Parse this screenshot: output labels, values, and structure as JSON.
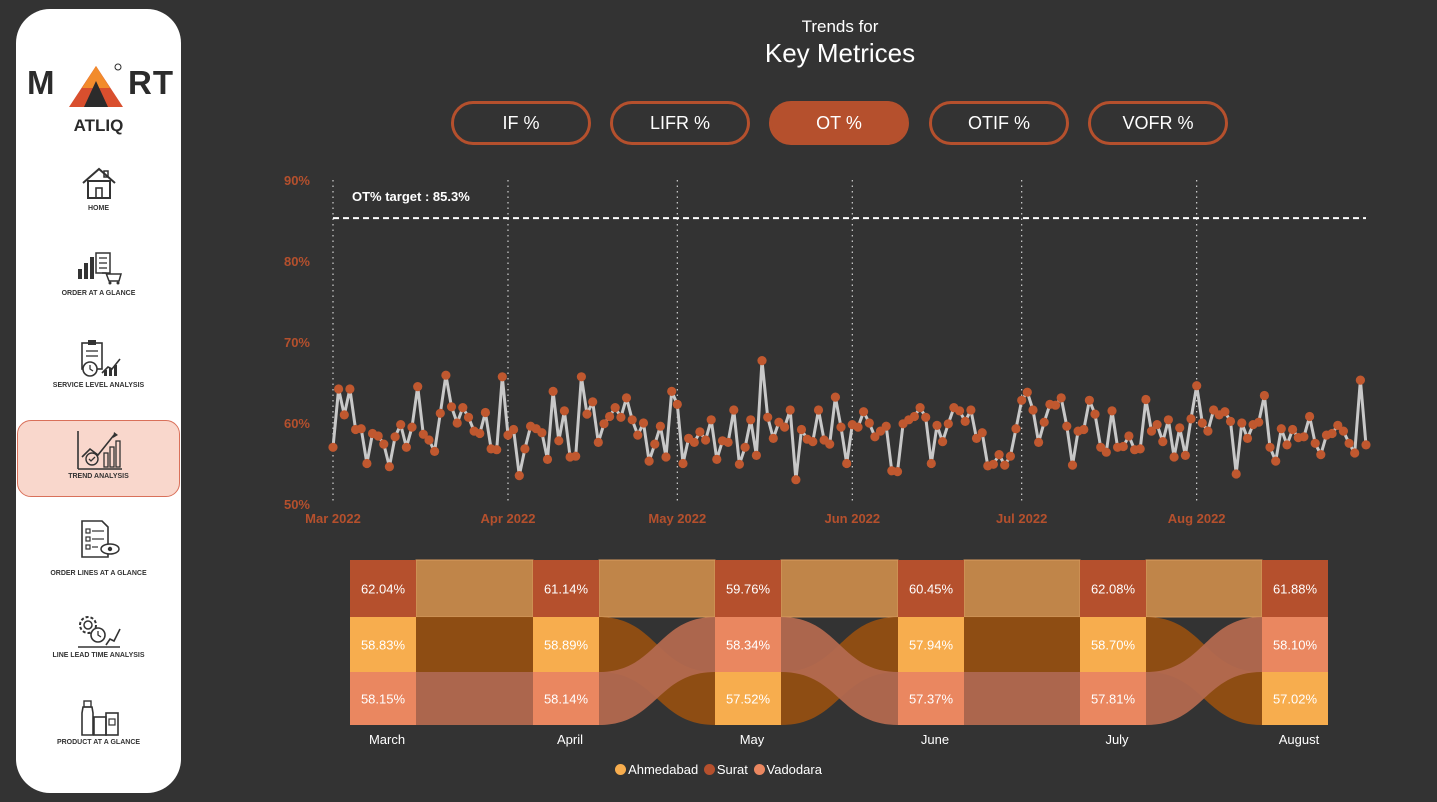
{
  "brand": {
    "logo_left": "M",
    "logo_right": "RT",
    "sub": "ATLIQ"
  },
  "nav": [
    {
      "label": "HOME",
      "icon": "home-icon"
    },
    {
      "label": "ORDER AT A GLANCE",
      "icon": "order-chart-icon"
    },
    {
      "label": "SERVICE LEVEL ANALYSIS",
      "icon": "clipboard-clock-icon"
    },
    {
      "label": "TREND ANALYSIS",
      "icon": "trend-chart-icon",
      "active": true
    },
    {
      "label": "ORDER LINES AT A GLANCE",
      "icon": "document-eye-icon"
    },
    {
      "label": "LINE LEAD TIME ANALYSIS",
      "icon": "gear-clock-icon"
    },
    {
      "label": "PRODUCT AT A GLANCE",
      "icon": "product-box-icon"
    }
  ],
  "header": {
    "small": "Trends for",
    "big": "Key Metrices"
  },
  "tabs": [
    {
      "label": "IF %"
    },
    {
      "label": "LIFR %"
    },
    {
      "label": "OT %",
      "active": true
    },
    {
      "label": "OTIF %"
    },
    {
      "label": "VOFR %"
    }
  ],
  "colors": {
    "accent": "#b5502d",
    "line": "#c8c8c8",
    "marker": "#c0582f",
    "ahmedabad": "#f7ad4e",
    "surat": "#b5502d",
    "vadodara": "#ea8760"
  },
  "chart_data": [
    {
      "type": "line",
      "target_label": "OT% target : 85.3%",
      "target": 85.3,
      "ylim": [
        50,
        90
      ],
      "yticks": [
        "50%",
        "60%",
        "70%",
        "80%",
        "90%"
      ],
      "ytick_values": [
        50,
        60,
        70,
        80,
        90
      ],
      "xticks": [
        {
          "label": "Mar 2022",
          "day": 0
        },
        {
          "label": "Apr 2022",
          "day": 31
        },
        {
          "label": "May 2022",
          "day": 61
        },
        {
          "label": "Jun 2022",
          "day": 92
        },
        {
          "label": "Jul 2022",
          "day": 122
        },
        {
          "label": "Aug 2022",
          "day": 153
        }
      ],
      "x_day_range": [
        0,
        183
      ],
      "series": [
        {
          "values": [
            57.0,
            64.2,
            61.0,
            64.2,
            59.2,
            59.3,
            55.0,
            58.7,
            58.4,
            57.4,
            54.6,
            58.3,
            59.8,
            57.0,
            59.5,
            64.5,
            58.6,
            57.9,
            56.5,
            61.2,
            65.9,
            62.0,
            60.0,
            61.9,
            60.7,
            59.0,
            58.7,
            61.3,
            56.8,
            56.7,
            65.7,
            58.5,
            59.2,
            53.5,
            56.8,
            59.6,
            59.3,
            58.8,
            55.5,
            63.9,
            57.8,
            61.5,
            55.8,
            55.9,
            65.7,
            61.1,
            62.6,
            57.6,
            59.9,
            60.8,
            61.9,
            60.7,
            63.1,
            60.4,
            58.5,
            60.0,
            55.3,
            57.4,
            59.6,
            55.8,
            63.9,
            62.3,
            55.0,
            58.1,
            57.6,
            58.9,
            57.9,
            60.4,
            55.5,
            57.8,
            57.6,
            61.6,
            54.9,
            57.0,
            60.4,
            56.0,
            67.7,
            60.7,
            58.1,
            60.1,
            59.5,
            61.6,
            53.0,
            59.2,
            58.0,
            57.7,
            61.6,
            57.9,
            57.4,
            63.2,
            59.5,
            55.0,
            59.8,
            59.5,
            61.4,
            60.0,
            58.3,
            59.0,
            59.6,
            54.1,
            54.0,
            59.9,
            60.4,
            60.8,
            61.9,
            60.7,
            55.0,
            59.7,
            57.7,
            59.9,
            61.9,
            61.5,
            60.2,
            61.6,
            58.1,
            58.8,
            54.7,
            54.9,
            56.1,
            54.8,
            55.9,
            59.3,
            62.8,
            63.8,
            61.6,
            57.6,
            60.1,
            62.3,
            62.2,
            63.1,
            59.6,
            54.8,
            59.0,
            59.2,
            62.8,
            61.1,
            57.0,
            56.4,
            61.5,
            57.0,
            57.1,
            58.4,
            56.7,
            56.8,
            62.9,
            59.0,
            59.8,
            57.7,
            60.4,
            55.8,
            59.4,
            56.0,
            60.5,
            64.6,
            60.0,
            59.0,
            61.6,
            61.0,
            61.4,
            60.2,
            53.7,
            60.0,
            58.1,
            59.8,
            60.1,
            63.4,
            57.0,
            55.3,
            59.3,
            57.3,
            59.2,
            58.2,
            58.3,
            60.8,
            57.5,
            56.1,
            58.5,
            58.7,
            59.7,
            59.0,
            57.5,
            56.3,
            65.3,
            57.3
          ]
        }
      ]
    },
    {
      "type": "table",
      "categories": [
        "March",
        "April",
        "May",
        "June",
        "July",
        "August"
      ],
      "series": [
        {
          "name": "Ahmedabad",
          "values": [
            "58.83%",
            "58.89%",
            "57.52%",
            "57.94%",
            "58.70%",
            "57.02%"
          ]
        },
        {
          "name": "Surat",
          "values": [
            "62.04%",
            "61.14%",
            "59.76%",
            "60.45%",
            "62.08%",
            "61.88%"
          ]
        },
        {
          "name": "Vadodara",
          "values": [
            "58.15%",
            "58.14%",
            "58.34%",
            "57.37%",
            "57.81%",
            "58.10%"
          ]
        }
      ],
      "rank_order": [
        [
          "Surat",
          "Ahmedabad",
          "Vadodara"
        ],
        [
          "Surat",
          "Ahmedabad",
          "Vadodara"
        ],
        [
          "Surat",
          "Vadodara",
          "Ahmedabad"
        ],
        [
          "Surat",
          "Ahmedabad",
          "Vadodara"
        ],
        [
          "Surat",
          "Ahmedabad",
          "Vadodara"
        ],
        [
          "Surat",
          "Vadodara",
          "Ahmedabad"
        ]
      ],
      "legend": [
        "Ahmedabad",
        "Surat",
        "Vadodara"
      ]
    }
  ]
}
